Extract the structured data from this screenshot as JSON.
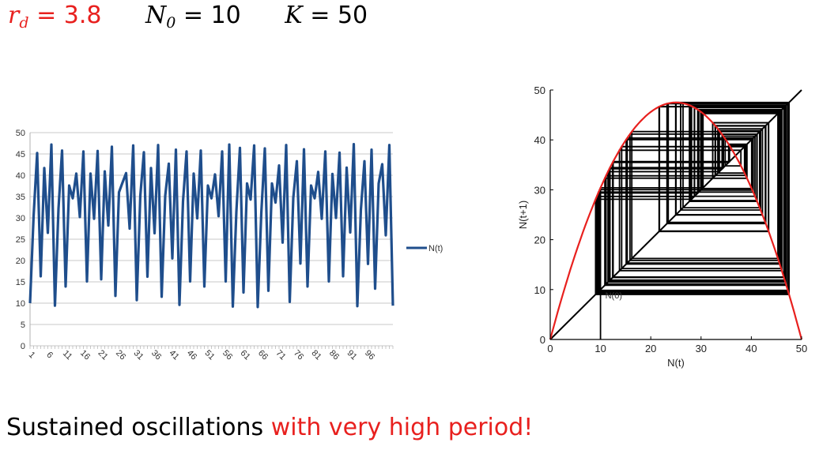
{
  "heading": {
    "rd_sym": "r",
    "rd_sub": "d",
    "rd_val": "= 3.8",
    "n0_sym": "N",
    "n0_sub": "0",
    "n0_val": "= 10",
    "k_sym": "K",
    "k_val": "= 50"
  },
  "caption": {
    "main": "Sustained oscillations",
    "highlight": "with very high period!"
  },
  "colors": {
    "time_series": "#1f4e8c",
    "cobweb": "#000000",
    "parabola": "#e8201e",
    "highlight_text": "#e8201e"
  },
  "chart_data": [
    {
      "type": "line",
      "legend": [
        "N(t)"
      ],
      "legend_placement": "right",
      "grid": true,
      "ylim": [
        0,
        50
      ],
      "yticks": [
        0,
        5,
        10,
        15,
        20,
        25,
        30,
        35,
        40,
        45,
        50
      ],
      "xticks": [
        1,
        6,
        11,
        16,
        21,
        26,
        31,
        36,
        41,
        46,
        51,
        56,
        61,
        66,
        71,
        76,
        81,
        86,
        91,
        96
      ],
      "series": [
        {
          "name": "N(t)",
          "values": [
            10,
            30.4,
            45.2,
            16.3,
            41.7,
            26.5,
            47.2,
            9.4,
            32.2,
            45.8,
            13.9,
            37.6,
            34.6,
            40.4,
            30.2,
            45.6,
            15.1,
            40.4,
            29.8,
            45.7,
            15.6,
            40.9,
            28.2,
            46.7,
            11.7,
            36.0,
            38.3,
            40.5,
            27.5,
            47.0,
            10.7,
            35.2,
            45.4,
            16.2,
            41.7,
            26.4,
            47.1,
            11.5,
            35.2,
            42.7,
            20.5,
            46.0,
            9.6,
            33.9,
            45.6,
            15.1,
            40.4,
            29.9,
            45.8,
            13.9,
            37.6,
            34.6,
            40.2,
            30.4,
            45.6,
            15.1,
            47.2,
            9.2,
            31.5,
            46.4,
            12.5,
            38.1,
            34.3,
            47.0,
            9.1,
            31.0,
            46.3,
            12.9,
            38.1,
            33.6,
            42.3,
            24.2,
            47.1,
            10.3,
            34.7,
            43.3,
            19.3,
            46.1,
            13.9,
            37.6,
            34.6,
            40.8,
            29.8,
            45.6,
            15.1,
            40.3,
            30.0,
            45.3,
            16.3,
            41.8,
            26.6,
            47.3,
            9.3,
            31.9,
            43.3,
            19.2,
            46.0,
            13.4,
            38.1,
            42.6,
            25.9,
            47.1,
            9.4
          ]
        }
      ]
    },
    {
      "type": "line",
      "xlabel": "N(t)",
      "ylabel": "N(t+1)",
      "xlim": [
        0,
        50
      ],
      "ylim": [
        0,
        50
      ],
      "xticks": [
        0,
        10,
        20,
        30,
        40,
        50
      ],
      "yticks": [
        0,
        10,
        20,
        30,
        40,
        50
      ],
      "grid": false,
      "annotation": "N(0)",
      "rd": 3.8,
      "K": 50,
      "N0": 10,
      "series": [
        {
          "role": "parabola",
          "values_from": "N(t+1) = 3.8·N(t)·(1 − N(t)/50)"
        },
        {
          "role": "diagonal",
          "x": [
            0,
            50
          ],
          "y": [
            0,
            50
          ]
        },
        {
          "role": "cobweb",
          "start": 10
        }
      ]
    }
  ]
}
